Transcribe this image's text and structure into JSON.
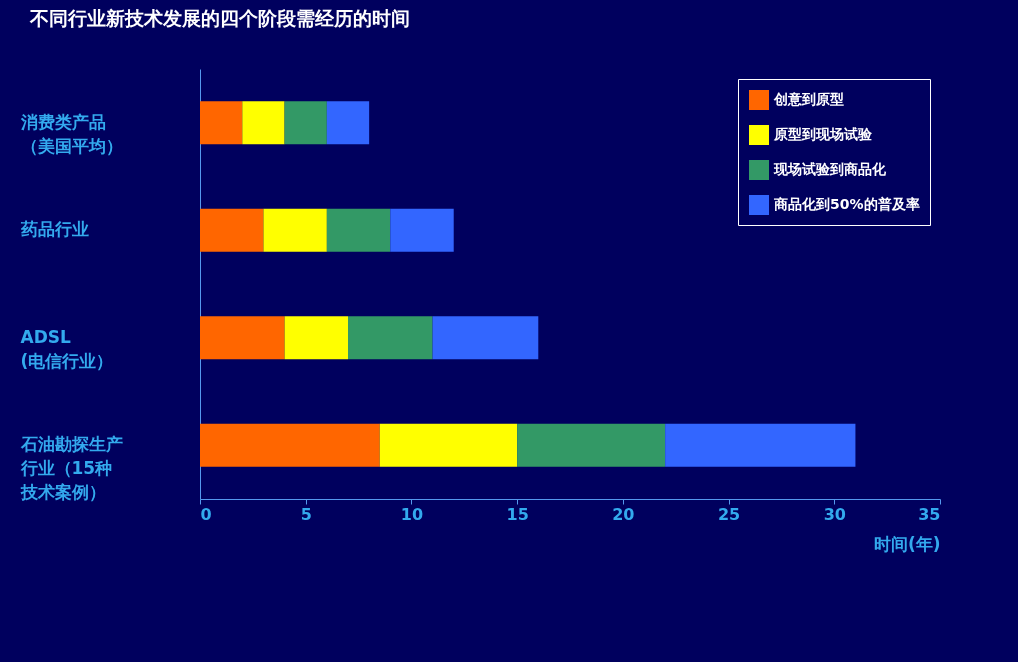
{
  "chart_data": {
    "type": "bar",
    "orientation": "horizontal",
    "stacked": true,
    "title": "不同行业新技术发展的四个阶段需经历的时间",
    "xlabel": "时间(年)",
    "categories": [
      "消费类产品（美国平均）",
      "药品行业",
      "ADSL(电信行业）",
      "石油勘探生产行业（15种技术案例）"
    ],
    "series": [
      {
        "name": "创意到原型",
        "color": "#ff6600",
        "values": [
          2,
          3,
          4,
          8.5
        ]
      },
      {
        "name": "原型到现场试验",
        "color": "#ffff00",
        "values": [
          2,
          3,
          3,
          6.5
        ]
      },
      {
        "name": "现场试验到商品化",
        "color": "#339966",
        "values": [
          2,
          3,
          4,
          7
        ]
      },
      {
        "name": "商品化到50%的普及率",
        "color": "#3366ff",
        "values": [
          2,
          3,
          5,
          9
        ]
      }
    ],
    "xlim": [
      0,
      35
    ],
    "xticks": [
      0,
      5,
      10,
      15,
      20,
      25,
      30,
      35
    ],
    "grid": false,
    "legend": "top right"
  }
}
